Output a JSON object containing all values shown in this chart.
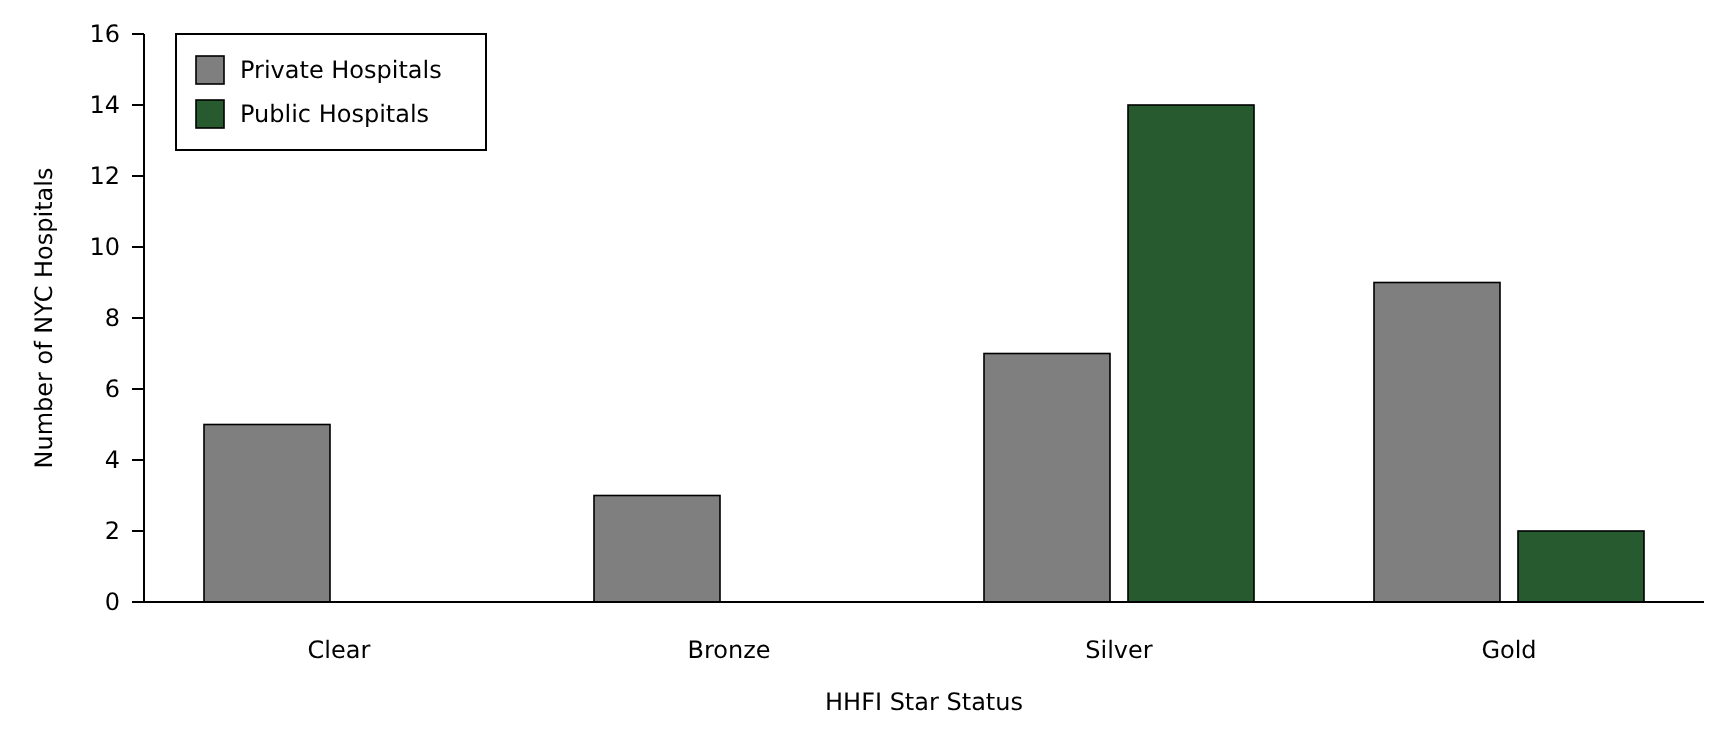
{
  "chart_data": {
    "type": "bar",
    "xlabel": "HHFI Star Status",
    "ylabel": "Number of NYC Hospitals",
    "categories": [
      "Clear",
      "Bronze",
      "Silver",
      "Gold"
    ],
    "series": [
      {
        "name": "Private Hospitals",
        "color": "#7f7f7f",
        "values": [
          5,
          3,
          7,
          9
        ]
      },
      {
        "name": "Public Hospitals",
        "color": "#275a2f",
        "values": [
          0,
          0,
          14,
          2
        ]
      }
    ],
    "ylim": [
      0,
      16
    ],
    "yticks": [
      0,
      2,
      4,
      6,
      8,
      10,
      12,
      14,
      16
    ],
    "grid": false,
    "legend": "top left"
  }
}
